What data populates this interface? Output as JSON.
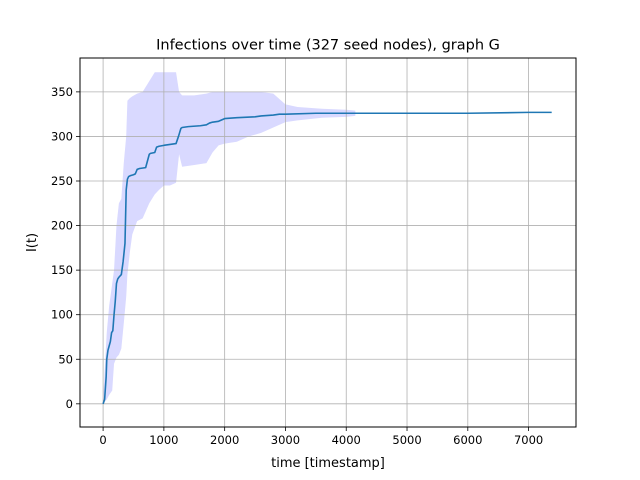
{
  "chart_data": {
    "type": "line",
    "title": "Infections over time (327 seed nodes), graph G",
    "xlabel": "time [timestamp]",
    "ylabel": "I(t)",
    "xlim": [
      -380,
      7780
    ],
    "ylim": [
      -26,
      388
    ],
    "xticks": [
      0,
      1000,
      2000,
      3000,
      4000,
      5000,
      6000,
      7000
    ],
    "yticks": [
      0,
      50,
      100,
      150,
      200,
      250,
      300,
      350
    ],
    "grid": true,
    "colors": {
      "line": "#1f77b4",
      "band": "#d9d9ff"
    },
    "series": [
      {
        "type": "line",
        "x": [
          0,
          25,
          50,
          60,
          80,
          100,
          120,
          140,
          160,
          180,
          200,
          220,
          240,
          260,
          300,
          330,
          360,
          380,
          400,
          420,
          450,
          500,
          530,
          560,
          600,
          700,
          760,
          780,
          850,
          880,
          920,
          1000,
          1200,
          1240,
          1280,
          1300,
          1400,
          1600,
          1700,
          1750,
          1800,
          1900,
          2000,
          2200,
          2500,
          2600,
          2800,
          2900,
          3000,
          3500,
          4000,
          5000,
          6000,
          7000,
          7380
        ],
        "y": [
          0,
          5,
          30,
          50,
          60,
          65,
          70,
          80,
          82,
          100,
          115,
          135,
          140,
          142,
          145,
          160,
          180,
          240,
          252,
          255,
          256,
          257,
          258,
          263,
          264,
          265,
          280,
          281,
          282,
          288,
          289,
          290,
          292,
          300,
          309,
          310,
          311,
          312,
          313,
          315,
          316,
          317,
          320,
          321,
          322,
          323,
          324,
          325,
          325,
          326,
          326,
          326,
          326,
          327,
          327
        ]
      },
      {
        "type": "band",
        "x": [
          0,
          60,
          100,
          150,
          180,
          220,
          260,
          300,
          340,
          380,
          400,
          440,
          480,
          560,
          650,
          760,
          850,
          920,
          1000,
          1100,
          1200,
          1250,
          1300,
          1500,
          1700,
          1800,
          1900,
          2000,
          2200,
          2400,
          2600,
          2800,
          3000,
          3200,
          3600,
          4000,
          4150
        ],
        "upper": [
          5,
          80,
          110,
          135,
          150,
          200,
          225,
          230,
          270,
          300,
          340,
          343,
          345,
          348,
          350,
          362,
          372,
          372,
          372,
          372,
          372,
          350,
          346,
          346,
          348,
          350,
          350,
          350,
          350,
          350,
          350,
          348,
          336,
          333,
          331,
          330,
          329
        ],
        "lower": [
          0,
          5,
          10,
          15,
          45,
          52,
          55,
          62,
          90,
          120,
          145,
          170,
          190,
          205,
          208,
          225,
          235,
          240,
          245,
          245,
          248,
          280,
          266,
          268,
          270,
          282,
          290,
          292,
          294,
          300,
          304,
          310,
          316,
          318,
          321,
          322,
          323
        ]
      }
    ]
  }
}
